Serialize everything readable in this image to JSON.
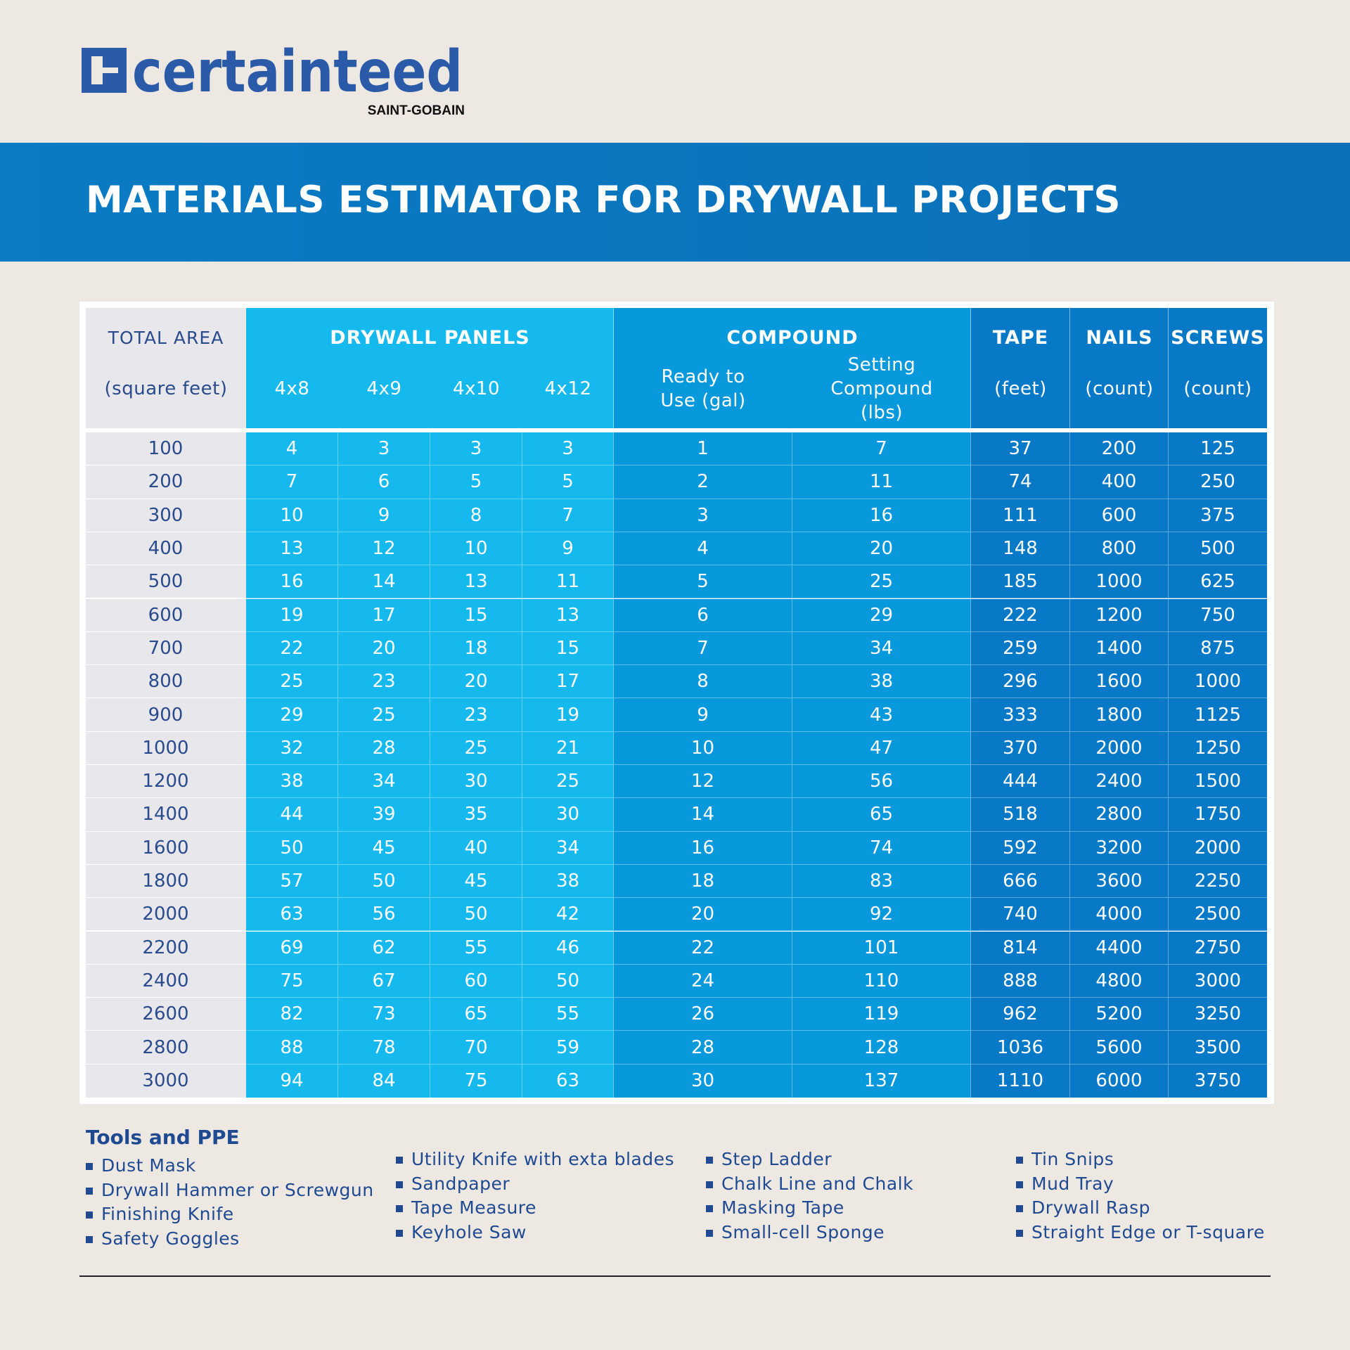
{
  "header": {
    "logo": "certainteed",
    "tagline": "SAINT-GOBAIN",
    "title": "MATERIALS ESTIMATOR FOR DRYWALL PROJECTS"
  },
  "table": {
    "header_top": [
      "TOTAL AREA",
      "DRYWALL PANELS",
      "COMPOUND",
      "TAPE",
      "NAILS",
      "SCREWS"
    ],
    "header_sub": [
      "(square feet)",
      "4x8",
      "4x9",
      "4x10",
      "4x12",
      "Ready to Use (gal)",
      "Setting Compound (lbs)",
      "(feet)",
      "(count)",
      "(count)"
    ],
    "rows": [
      [
        100,
        4,
        3,
        3,
        3,
        1,
        7,
        37,
        200,
        125
      ],
      [
        200,
        7,
        6,
        5,
        5,
        2,
        11,
        74,
        400,
        250
      ],
      [
        300,
        10,
        9,
        8,
        7,
        3,
        16,
        111,
        600,
        375
      ],
      [
        400,
        13,
        12,
        10,
        9,
        4,
        20,
        148,
        800,
        500
      ],
      [
        500,
        16,
        14,
        13,
        11,
        5,
        25,
        185,
        1000,
        625
      ],
      [
        600,
        19,
        17,
        15,
        13,
        6,
        29,
        222,
        1200,
        750
      ],
      [
        700,
        22,
        20,
        18,
        15,
        7,
        34,
        259,
        1400,
        875
      ],
      [
        800,
        25,
        23,
        20,
        17,
        8,
        38,
        296,
        1600,
        1000
      ],
      [
        900,
        29,
        25,
        23,
        19,
        9,
        43,
        333,
        1800,
        1125
      ],
      [
        1000,
        32,
        28,
        25,
        21,
        10,
        47,
        370,
        2000,
        1250
      ],
      [
        1200,
        38,
        34,
        30,
        25,
        12,
        56,
        444,
        2400,
        1500
      ],
      [
        1400,
        44,
        39,
        35,
        30,
        14,
        65,
        518,
        2800,
        1750
      ],
      [
        1600,
        50,
        45,
        40,
        34,
        16,
        74,
        592,
        3200,
        2000
      ],
      [
        1800,
        57,
        50,
        45,
        38,
        18,
        83,
        666,
        3600,
        2250
      ],
      [
        2000,
        63,
        56,
        50,
        42,
        20,
        92,
        740,
        4000,
        2500
      ],
      [
        2200,
        69,
        62,
        55,
        46,
        22,
        101,
        814,
        4400,
        2750
      ],
      [
        2400,
        75,
        67,
        60,
        50,
        24,
        110,
        888,
        4800,
        3000
      ],
      [
        2600,
        82,
        73,
        65,
        55,
        26,
        119,
        962,
        5200,
        3250
      ],
      [
        2800,
        88,
        78,
        70,
        59,
        28,
        128,
        1036,
        5600,
        3500
      ],
      [
        3000,
        94,
        84,
        75,
        63,
        30,
        137,
        1110,
        6000,
        3750
      ]
    ]
  },
  "tools": {
    "title": "Tools and PPE",
    "columns": [
      [
        "Dust Mask",
        "Drywall Hammer or Screwgun",
        "Finishing Knife",
        "Safety Goggles"
      ],
      [
        "Utility Knife with exta blades",
        "Sandpaper",
        "Tape Measure",
        "Keyhole Saw"
      ],
      [
        "Step Ladder",
        "Chalk Line and Chalk",
        "Masking Tape",
        "Small-cell Sponge"
      ],
      [
        "Tin Snips",
        "Mud Tray",
        "Drywall Rasp",
        "Straight Edge or T-square"
      ]
    ]
  }
}
